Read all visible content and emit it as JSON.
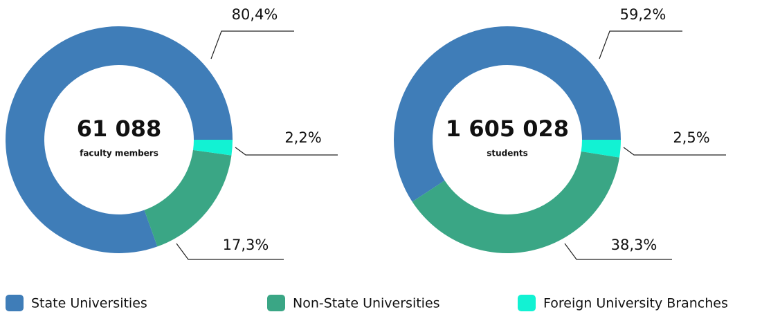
{
  "chart_data": [
    {
      "type": "donut",
      "center_value": "61 088",
      "center_label": "faculty members",
      "categories": [
        "State Universities",
        "Non-State Universities",
        "Foreign University Branches"
      ],
      "colors": [
        "#3f7db8",
        "#3aa685",
        "#12f2d3"
      ],
      "values": [
        80.4,
        17.3,
        2.2
      ],
      "value_labels": [
        "80,4%",
        "17,3%",
        "2,2%"
      ]
    },
    {
      "type": "donut",
      "center_value": "1 605 028",
      "center_label": "students",
      "categories": [
        "State Universities",
        "Non-State Universities",
        "Foreign University Branches"
      ],
      "colors": [
        "#3f7db8",
        "#3aa685",
        "#12f2d3"
      ],
      "values": [
        59.2,
        38.3,
        2.5
      ],
      "value_labels": [
        "59,2%",
        "38,3%",
        "2,5%"
      ]
    }
  ]
}
